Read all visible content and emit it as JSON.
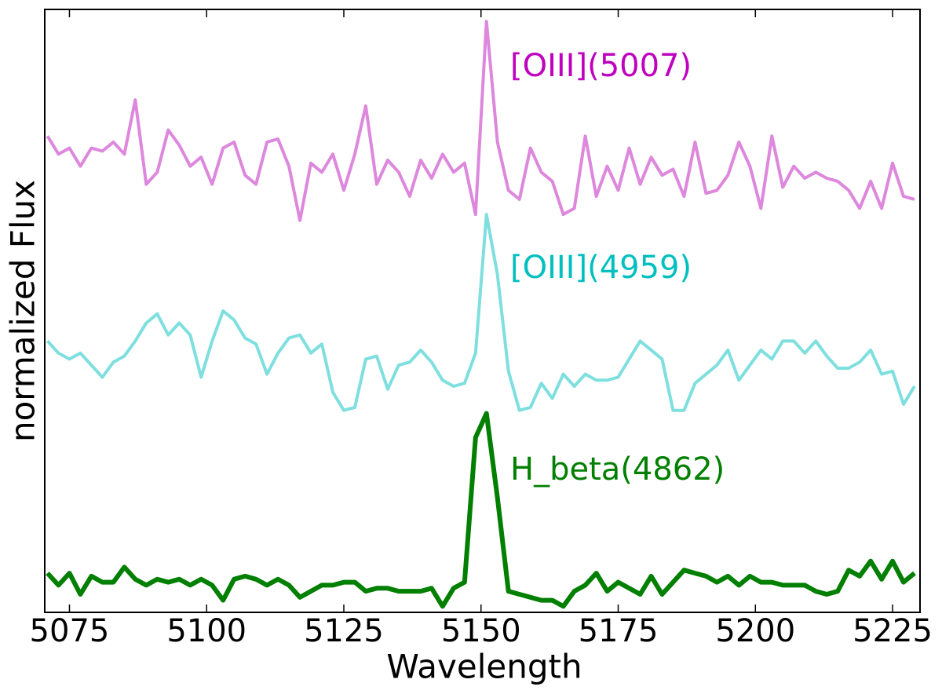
{
  "chart_data": {
    "type": "line",
    "xlabel": "Wavelength",
    "ylabel": "normalized Flux",
    "x": [
      5071,
      5073,
      5075,
      5077,
      5079,
      5081,
      5083,
      5085,
      5087,
      5089,
      5091,
      5093,
      5095,
      5097,
      5099,
      5101,
      5103,
      5105,
      5107,
      5109,
      5111,
      5113,
      5115,
      5117,
      5119,
      5121,
      5123,
      5125,
      5127,
      5129,
      5131,
      5133,
      5135,
      5137,
      5139,
      5141,
      5143,
      5145,
      5147,
      5149,
      5151,
      5153,
      5155,
      5157,
      5159,
      5161,
      5163,
      5165,
      5167,
      5169,
      5171,
      5173,
      5175,
      5177,
      5179,
      5181,
      5183,
      5185,
      5187,
      5189,
      5191,
      5193,
      5195,
      5197,
      5199,
      5201,
      5203,
      5205,
      5207,
      5209,
      5211,
      5213,
      5215,
      5217,
      5219,
      5221,
      5223,
      5225,
      5227,
      5229
    ],
    "series": [
      {
        "color": "#dd88dd",
        "width": 4,
        "values": [
          7.9,
          7.6,
          7.7,
          7.4,
          7.7,
          7.65,
          7.8,
          7.6,
          8.5,
          7.1,
          7.3,
          8.0,
          7.75,
          7.4,
          7.55,
          7.1,
          7.7,
          7.8,
          7.25,
          7.1,
          7.8,
          7.85,
          7.4,
          6.5,
          7.45,
          7.3,
          7.6,
          7.0,
          7.6,
          8.4,
          7.1,
          7.5,
          7.3,
          6.9,
          7.5,
          7.2,
          7.6,
          7.3,
          7.45,
          6.6,
          9.8,
          7.8,
          7.0,
          6.85,
          7.7,
          7.3,
          7.15,
          6.6,
          6.7,
          7.9,
          6.9,
          7.4,
          7.0,
          7.7,
          7.1,
          7.55,
          7.25,
          7.35,
          6.9,
          7.8,
          6.95,
          7.0,
          7.25,
          7.8,
          7.4,
          6.7,
          7.9,
          7.05,
          7.4,
          7.2,
          7.3,
          7.2,
          7.15,
          7.0,
          6.7,
          7.15,
          6.7,
          7.45,
          6.9,
          6.85
        ]
      },
      {
        "color": "#7fdfdf",
        "width": 4,
        "values": [
          4.5,
          4.3,
          4.2,
          4.3,
          4.1,
          3.9,
          4.15,
          4.25,
          4.5,
          4.8,
          4.95,
          4.6,
          4.8,
          4.6,
          3.9,
          4.5,
          5.0,
          4.85,
          4.55,
          4.45,
          3.95,
          4.3,
          4.55,
          4.6,
          4.3,
          4.45,
          3.65,
          3.35,
          3.4,
          4.2,
          4.25,
          3.7,
          4.1,
          4.15,
          4.35,
          4.15,
          3.85,
          3.75,
          3.8,
          4.3,
          6.6,
          5.6,
          4.0,
          3.35,
          3.4,
          3.8,
          3.55,
          3.95,
          3.75,
          3.95,
          3.85,
          3.85,
          3.9,
          4.2,
          4.5,
          4.35,
          4.2,
          3.35,
          3.35,
          3.8,
          3.95,
          4.1,
          4.35,
          3.85,
          4.1,
          4.35,
          4.2,
          4.5,
          4.5,
          4.3,
          4.5,
          4.25,
          4.05,
          4.05,
          4.15,
          4.35,
          3.95,
          4.0,
          3.45,
          3.75
        ]
      },
      {
        "color": "#007f00",
        "width": 6,
        "values": [
          0.65,
          0.45,
          0.65,
          0.3,
          0.6,
          0.5,
          0.5,
          0.75,
          0.55,
          0.45,
          0.55,
          0.5,
          0.55,
          0.45,
          0.55,
          0.45,
          0.2,
          0.55,
          0.6,
          0.55,
          0.45,
          0.55,
          0.45,
          0.25,
          0.35,
          0.45,
          0.45,
          0.5,
          0.5,
          0.35,
          0.4,
          0.4,
          0.35,
          0.35,
          0.35,
          0.4,
          0.1,
          0.4,
          0.5,
          2.9,
          3.3,
          1.9,
          0.35,
          0.3,
          0.25,
          0.2,
          0.2,
          0.1,
          0.35,
          0.45,
          0.65,
          0.35,
          0.5,
          0.4,
          0.3,
          0.6,
          0.3,
          0.5,
          0.7,
          0.65,
          0.6,
          0.5,
          0.6,
          0.45,
          0.6,
          0.5,
          0.5,
          0.45,
          0.45,
          0.45,
          0.35,
          0.3,
          0.35,
          0.7,
          0.6,
          0.85,
          0.55,
          0.85,
          0.5,
          0.65
        ]
      }
    ],
    "annotations": [
      {
        "text": "[OIII](5007)",
        "color": "#bf00bf"
      },
      {
        "text": "[OIII](4959)",
        "color": "#00bfbf"
      },
      {
        "text": "H_beta(4862)",
        "color": "#007f00"
      }
    ],
    "xlim": [
      5070.5,
      5230
    ],
    "ylim": [
      0,
      10
    ],
    "xticks": [
      5075,
      5100,
      5125,
      5150,
      5175,
      5200,
      5225
    ]
  }
}
